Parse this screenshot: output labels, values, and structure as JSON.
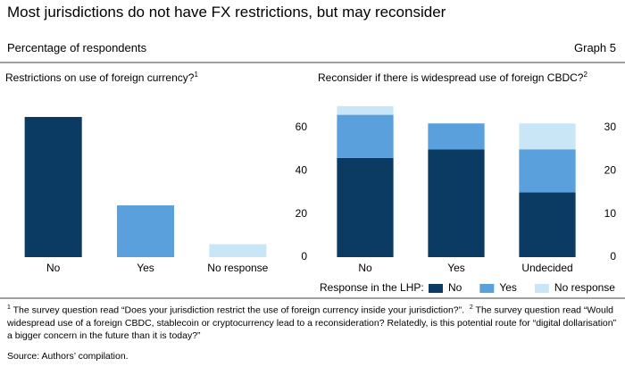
{
  "title": "Most jurisdictions do not have FX restrictions, but may reconsider",
  "subtitle": "Percentage of respondents",
  "graph_label": "Graph 5",
  "chart_data": [
    {
      "type": "bar",
      "title": "Restrictions on use of foreign currency?",
      "title_note": "1",
      "categories": [
        "No",
        "Yes",
        "No response"
      ],
      "values": [
        65,
        24,
        6
      ],
      "colors": [
        "#0b3a63",
        "#5aa0dc",
        "#c9e6f7"
      ],
      "ylim": [
        0,
        77
      ],
      "yticks": [
        0,
        20,
        40,
        60
      ]
    },
    {
      "type": "stacked_bar",
      "title": "Reconsider if there is widespread use of foreign CBDC?",
      "title_note": "2",
      "categories": [
        "No",
        "Yes",
        "Undecided"
      ],
      "series": [
        {
          "name": "No",
          "color": "#0b3a63",
          "values": [
            23,
            25,
            15
          ]
        },
        {
          "name": "Yes",
          "color": "#5aa0dc",
          "values": [
            10,
            6,
            10
          ]
        },
        {
          "name": "No response",
          "color": "#c9e6f7",
          "values": [
            2,
            0,
            6
          ]
        }
      ],
      "legend_title": "Response in the LHP:",
      "ylim": [
        0,
        38.5
      ],
      "yticks": [
        0,
        10,
        20,
        30
      ]
    }
  ],
  "footnotes": [
    {
      "mark": "1",
      "text": "The survey question read “Does your jurisdiction restrict the use of foreign currency inside your jurisdiction?”."
    },
    {
      "mark": "2",
      "text": "The survey question read “Would widespread use of a foreign CBDC, stablecoin or cryptocurrency lead to a reconsideration? Relatedly, is this potential route for “digital dollarisation” a bigger concern in the future than it is today?”"
    }
  ],
  "source": "Source: Authors’ compilation."
}
